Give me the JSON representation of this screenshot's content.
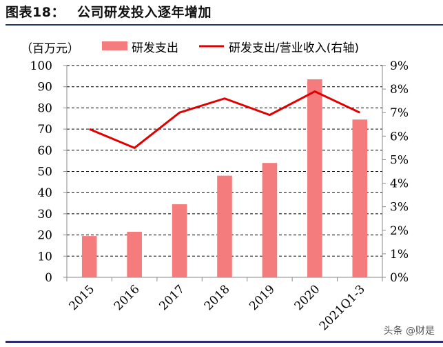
{
  "figure": {
    "label": "图表18：",
    "title": "公司研发投入逐年增加"
  },
  "watermark": "头条 @财是",
  "chart_data": {
    "type": "bar+line",
    "unit_label": "（百万元）",
    "categories": [
      "2015",
      "2016",
      "2017",
      "2018",
      "2019",
      "2020",
      "2021Q1-3"
    ],
    "series": [
      {
        "name": "研发支出",
        "type": "bar",
        "axis": "left",
        "color": "#f47c7c",
        "values": [
          19.5,
          21.5,
          34.5,
          48,
          54,
          93.5,
          74.5
        ]
      },
      {
        "name": "研发支出/营业收入(右轴)",
        "type": "line",
        "axis": "right",
        "color": "#e00000",
        "values": [
          6.3,
          5.5,
          7.0,
          7.6,
          6.9,
          7.9,
          7.0
        ]
      }
    ],
    "y_left": {
      "min": 0,
      "max": 100,
      "step": 10,
      "ticks": [
        "0",
        "10",
        "20",
        "30",
        "40",
        "50",
        "60",
        "70",
        "80",
        "90",
        "100"
      ]
    },
    "y_right": {
      "min": 0,
      "max": 9,
      "step": 1,
      "ticks": [
        "0%",
        "1%",
        "2%",
        "3%",
        "4%",
        "5%",
        "6%",
        "7%",
        "8%",
        "9%"
      ]
    },
    "grid": true,
    "legend_position": "top"
  }
}
